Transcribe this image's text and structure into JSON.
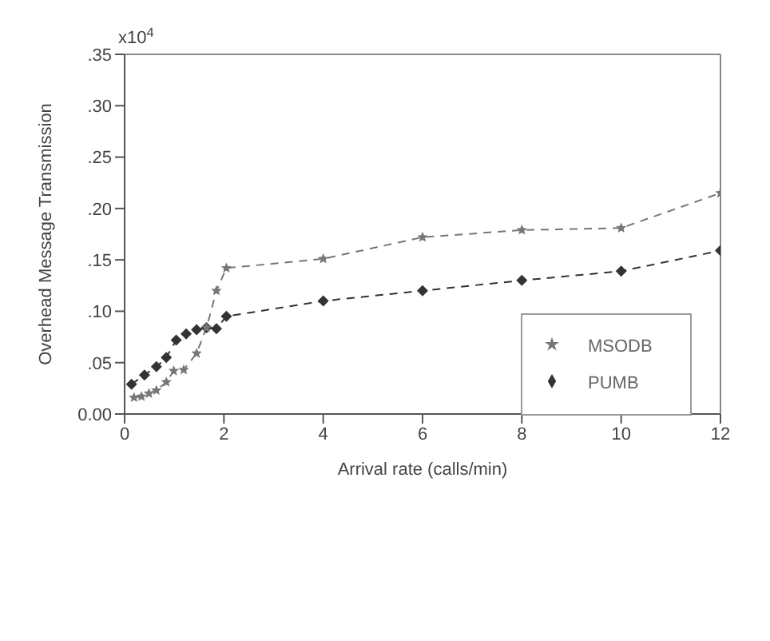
{
  "chart_data": {
    "type": "line",
    "xlabel": "Arrival rate (calls/min)",
    "ylabel": "Overhead Message Transmission",
    "annotations": [
      "x10$^{4}$"
    ],
    "xlim": [
      0,
      12
    ],
    "xticks": [
      0,
      2,
      4,
      6,
      8,
      10,
      12
    ],
    "ylim": [
      0,
      0.35
    ],
    "yticks": [
      {
        "value": 0,
        "label": "0.00"
      },
      {
        "value": 0.05,
        "label": ".05"
      },
      {
        "value": 0.1,
        "label": ".10"
      },
      {
        "value": 0.15,
        "label": ".15"
      },
      {
        "value": 0.2,
        "label": ".20"
      },
      {
        "value": 0.25,
        "label": ".25"
      },
      {
        "value": 0.3,
        "label": ".30"
      },
      {
        "value": 0.35,
        "label": ".35"
      }
    ],
    "grid": false,
    "legend": "bottom right",
    "line_style": "dashed",
    "series": [
      {
        "name": "PUMB",
        "color": "#333333",
        "marker": "diamond",
        "x": [
          0.14,
          0.4,
          0.64,
          0.84,
          1.04,
          1.24,
          1.45,
          1.65,
          1.85,
          2.05,
          4,
          6,
          8,
          10,
          12
        ],
        "values": [
          0.029,
          0.038,
          0.046,
          0.055,
          0.072,
          0.078,
          0.082,
          0.084,
          0.083,
          0.095,
          0.11,
          0.12,
          0.13,
          0.139,
          0.159
        ]
      },
      {
        "name": "MSODB",
        "color": "#777777",
        "marker": "star",
        "x": [
          0.19,
          0.34,
          0.49,
          0.64,
          0.84,
          0.99,
          1.19,
          1.45,
          1.65,
          1.85,
          2.05,
          4,
          6,
          8,
          10,
          12
        ],
        "values": [
          0.016,
          0.017,
          0.02,
          0.023,
          0.031,
          0.042,
          0.043,
          0.059,
          0.084,
          0.12,
          0.142,
          0.151,
          0.172,
          0.179,
          0.181,
          0.215
        ]
      }
    ]
  }
}
